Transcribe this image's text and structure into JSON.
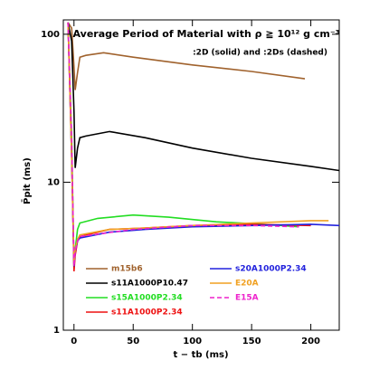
{
  "chart_data": {
    "type": "line",
    "title": "Average Period of Material with ρ ≧ 10¹² g cm⁻³",
    "subtitle": ":2D (solid) and :2Ds (dashed)",
    "y_label": "P̄pit (ms)",
    "x_label": "t − tb (ms)",
    "xlim": [
      -9,
      224
    ],
    "xticks": [
      0,
      50,
      100,
      150,
      200
    ],
    "ylim": [
      1,
      125
    ],
    "yticks": [
      1,
      10,
      100
    ],
    "y_scale": "log",
    "series": [
      {
        "name": "m15b6",
        "color": "#a0622d",
        "x": [
          -5,
          -2,
          0,
          1,
          3,
          5,
          10,
          25,
          50,
          100,
          150,
          195
        ],
        "values": [
          120,
          110,
          60,
          42,
          55,
          70,
          72,
          75,
          70,
          62,
          56,
          50
        ]
      },
      {
        "name": "s11A1000P10.47",
        "color": "#000000",
        "x": [
          -5,
          -2,
          0,
          1,
          3,
          5,
          10,
          30,
          60,
          100,
          150,
          200,
          224
        ],
        "values": [
          120,
          90,
          30,
          12.5,
          17,
          20,
          20.5,
          22,
          20,
          17,
          14.5,
          12.8,
          12
        ]
      },
      {
        "name": "s15A1000P2.34",
        "color": "#22dd22",
        "x": [
          -5,
          -2,
          0,
          1,
          3,
          5,
          20,
          50,
          80,
          120,
          160,
          190
        ],
        "values": [
          120,
          20,
          2.6,
          3.5,
          4.8,
          5.3,
          5.7,
          6.0,
          5.8,
          5.4,
          5.2,
          5.0
        ]
      },
      {
        "name": "s11A1000P2.34",
        "color": "#ee1111",
        "x": [
          -5,
          -2,
          0,
          1,
          3,
          5,
          30,
          60,
          100,
          150,
          200
        ],
        "values": [
          120,
          15,
          2.5,
          3.2,
          4.0,
          4.3,
          4.8,
          4.9,
          5.1,
          5.2,
          5.1
        ]
      },
      {
        "name": "s20A1000P2.34",
        "color": "#2222dd",
        "x": [
          -5,
          -2,
          0,
          1,
          3,
          5,
          30,
          60,
          100,
          150,
          200,
          224
        ],
        "values": [
          120,
          15,
          2.7,
          3.4,
          4.0,
          4.2,
          4.6,
          4.8,
          5.0,
          5.1,
          5.2,
          5.1
        ]
      },
      {
        "name": "E20A",
        "color": "#f0a020",
        "x": [
          -5,
          -2,
          0,
          1,
          3,
          5,
          30,
          60,
          100,
          150,
          200,
          215
        ],
        "values": [
          120,
          15,
          2.8,
          3.5,
          4.1,
          4.4,
          4.8,
          4.9,
          5.1,
          5.3,
          5.5,
          5.5
        ]
      },
      {
        "name": "E15A",
        "color": "#ee22cc",
        "linestyle": "dashed",
        "x": [
          -5,
          -2,
          0,
          1,
          3,
          5,
          50,
          100,
          150,
          190
        ],
        "values": [
          120,
          20,
          2.7,
          3.4,
          4.0,
          4.3,
          4.8,
          5.1,
          5.1,
          5.0
        ]
      }
    ]
  }
}
